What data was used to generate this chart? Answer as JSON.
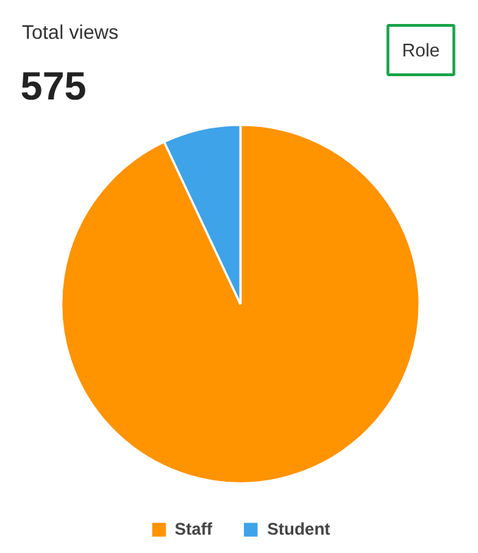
{
  "chart_data": {
    "type": "pie",
    "title": "Total views",
    "subtitle": "575",
    "categories": [
      "Staff",
      "Student"
    ],
    "values": [
      93,
      7
    ],
    "colors": [
      "#ff9300",
      "#3ea3e8"
    ],
    "annotations": [
      "Role"
    ],
    "legend": "bottom"
  }
}
